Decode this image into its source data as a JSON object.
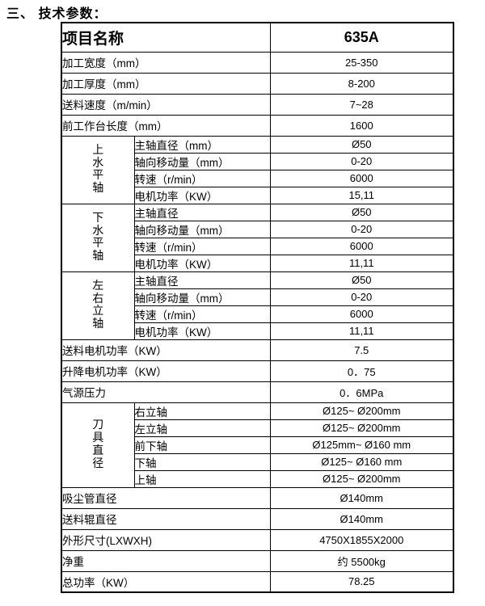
{
  "title": "三、 技术参数：",
  "table": {
    "header": {
      "item_name": "项目名称",
      "model": "635A"
    },
    "rows": [
      {
        "label": "加工宽度（mm）",
        "value": "25-350",
        "size": "lg"
      },
      {
        "label": "加工厚度（mm）",
        "value": "8-200",
        "size": "lg"
      },
      {
        "label": "送料速度（m/min）",
        "value": "7~28",
        "size": "lg"
      },
      {
        "label": "前工作台长度（mm）",
        "value": "1600",
        "size": "lg"
      },
      {
        "group": "上水平轴",
        "span": 4,
        "label": "主轴直径（mm）",
        "value": "Ø50",
        "size": "sm"
      },
      {
        "label": "轴向移动量（mm）",
        "value": "0-20",
        "size": "sm"
      },
      {
        "label": "转速（r/min）",
        "value": "6000",
        "size": "sm"
      },
      {
        "label": "电机功率（KW）",
        "value": "15,11",
        "size": "sm"
      },
      {
        "group": "下水平轴",
        "span": 4,
        "label": "主轴直径",
        "value": "Ø50",
        "size": "sm"
      },
      {
        "label": "轴向移动量（mm）",
        "value": "0-20",
        "size": "sm"
      },
      {
        "label": "转速（r/min）",
        "value": "6000",
        "size": "sm"
      },
      {
        "label": "电机功率（KW）",
        "value": "11,11",
        "size": "sm"
      },
      {
        "group": "左右立轴",
        "span": 4,
        "label": "主轴直径",
        "value": "Ø50",
        "size": "sm"
      },
      {
        "label": "轴向移动量（mm）",
        "value": "0-20",
        "size": "sm"
      },
      {
        "label": "转速（r/min）",
        "value": "6000",
        "size": "sm"
      },
      {
        "label": "电机功率（KW）",
        "value": "11,11",
        "size": "sm"
      },
      {
        "label": "送料电机功率（KW）",
        "value": "7.5",
        "size": "lg"
      },
      {
        "label": "升降电机功率（KW）",
        "value": "0．75",
        "size": "lg"
      },
      {
        "label": "气源压力",
        "value": "0．6MPa",
        "size": "lg"
      },
      {
        "group": "刀具直径",
        "span": 5,
        "label": "右立轴",
        "value": "Ø125~ Ø200mm",
        "size": "sm"
      },
      {
        "label": "左立轴",
        "value": "Ø125~ Ø200mm",
        "size": "sm"
      },
      {
        "label": "前下轴",
        "value": "Ø125mm~ Ø160 mm",
        "size": "sm"
      },
      {
        "label": "下轴",
        "value": "Ø125~ Ø160 mm",
        "size": "sm"
      },
      {
        "label": "上轴",
        "value": "Ø125~ Ø200mm",
        "size": "sm"
      },
      {
        "label": "吸尘管直径",
        "value": "Ø140mm",
        "size": "lg"
      },
      {
        "label": "送料辊直径",
        "value": "Ø140mm",
        "size": "lg"
      },
      {
        "label": "外形尺寸(LXWXH)",
        "value": "4750X1855X2000",
        "size": "lg"
      },
      {
        "label": "净重",
        "value": "约 5500kg",
        "size": "lg"
      },
      {
        "label": "总功率（KW）",
        "value": "78.25",
        "size": "lg"
      }
    ]
  }
}
